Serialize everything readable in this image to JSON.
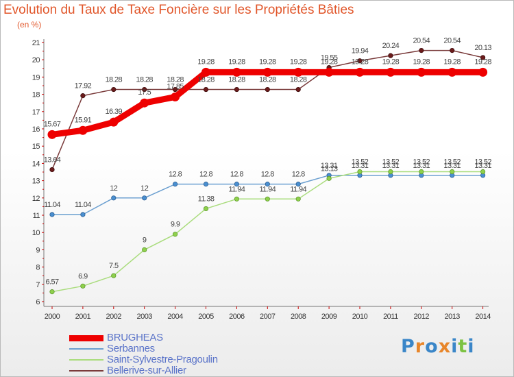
{
  "title": "Evolution du Taux de Taxe Foncière sur les Propriétés Bâties",
  "subtitle": "(en %)",
  "logo": {
    "letters": [
      "P",
      "r",
      "o",
      "x",
      "i",
      "t",
      "i"
    ],
    "colors": [
      "#3a86c8",
      "#e8862a",
      "#3a86c8",
      "#e8862a",
      "#3a86c8",
      "#7cc242",
      "#3a86c8"
    ]
  },
  "chart_data": {
    "type": "line",
    "title": "Evolution du Taux de Taxe Foncière sur les Propriétés Bâties",
    "ylabel": "(en %)",
    "x": [
      "2000",
      "2001",
      "2002",
      "2003",
      "2004",
      "2005",
      "2006",
      "2007",
      "2008",
      "2009",
      "2010",
      "2011",
      "2012",
      "2013",
      "2014"
    ],
    "ylim": [
      6,
      21
    ],
    "yticks": [
      "6",
      "7",
      "8",
      "9",
      "10",
      "11",
      "12",
      "13",
      "14",
      "15",
      "16",
      "17",
      "18",
      "19",
      "20",
      "21"
    ],
    "grid": false,
    "legend_position": "bottom-left",
    "series": [
      {
        "name": "BRUGHEAS",
        "color": "#ee0000",
        "values": [
          15.67,
          15.91,
          16.39,
          17.5,
          17.85,
          19.28,
          19.28,
          19.28,
          19.28,
          19.28,
          19.28,
          19.28,
          19.28,
          19.28,
          19.28
        ],
        "labels": [
          "15.67",
          "15.91",
          "16.39",
          "17.5",
          "17.85",
          "19.28",
          "19.28",
          "19.28",
          "19.28",
          "19.28",
          "19.28",
          "19.28",
          "19.28",
          "19.28",
          "19.28"
        ]
      },
      {
        "name": "Serbannes",
        "color": "#6b9fd0",
        "values": [
          11.04,
          11.04,
          12,
          12,
          12.8,
          12.8,
          12.8,
          12.8,
          12.8,
          13.31,
          13.31,
          13.31,
          13.31,
          13.31,
          13.31
        ],
        "labels": [
          "11.04",
          "11.04",
          "12",
          "12",
          "12.8",
          "12.8",
          "12.8",
          "12.8",
          "12.8",
          "13.31",
          "13.31",
          "13.31",
          "13.31",
          "13.31",
          "13.31"
        ]
      },
      {
        "name": "Saint-Sylvestre-Pragoulin",
        "color": "#a9dc7c",
        "values": [
          6.57,
          6.9,
          7.5,
          9,
          9.9,
          11.38,
          11.94,
          11.94,
          11.94,
          13.13,
          13.52,
          13.52,
          13.52,
          13.52,
          13.52
        ],
        "labels": [
          "6.57",
          "6.9",
          "7.5",
          "9",
          "9.9",
          "11.38",
          "11.94",
          "11.94",
          "11.94",
          "13.13",
          "13.52",
          "13.52",
          "13.52",
          "13.52",
          "13.52"
        ]
      },
      {
        "name": "Bellerive-sur-Allier",
        "color": "#7a3b3b",
        "values": [
          13.64,
          17.92,
          18.28,
          18.28,
          18.28,
          18.28,
          18.28,
          18.28,
          18.28,
          19.55,
          19.94,
          20.24,
          20.54,
          20.54,
          20.13
        ],
        "labels": [
          "13.64",
          "17.92",
          "18.28",
          "18.28",
          "18.28",
          "18.28",
          "18.28",
          "18.28",
          "18.28",
          "19.55",
          "19.94",
          "20.24",
          "20.54",
          "20.54",
          "20.13"
        ]
      }
    ]
  }
}
